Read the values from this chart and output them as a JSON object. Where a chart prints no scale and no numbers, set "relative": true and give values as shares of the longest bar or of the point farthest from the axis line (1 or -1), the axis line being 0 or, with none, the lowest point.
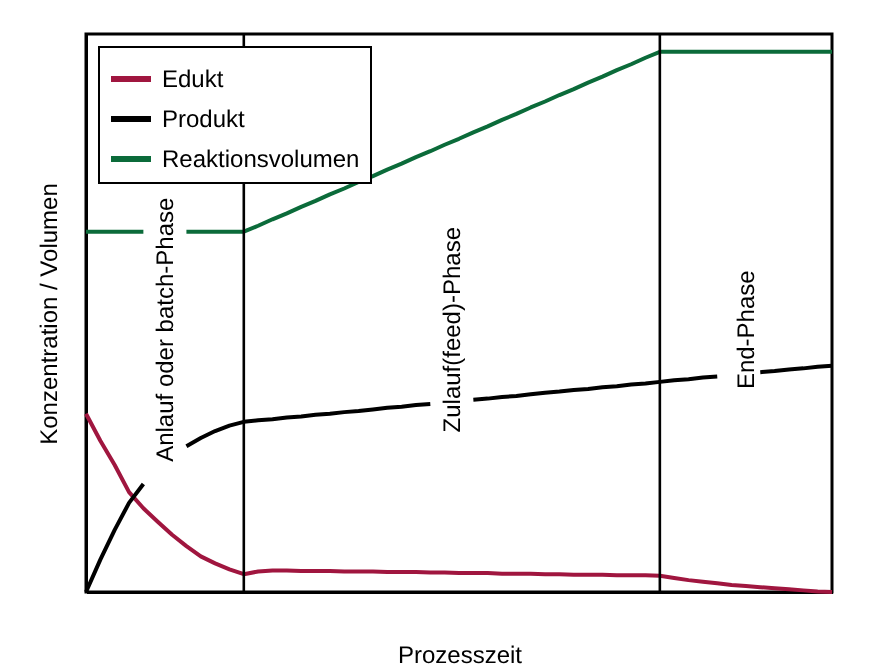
{
  "chart_data": {
    "type": "line",
    "relative": true,
    "xlabel": "Prozesszeit",
    "ylabel": "Konzentration / Volumen",
    "legend": "top left",
    "categories": [
      null,
      null,
      null,
      null,
      null,
      null,
      null,
      null,
      null,
      null,
      null,
      null,
      null,
      null,
      null,
      null,
      null,
      null,
      null,
      null,
      null,
      null,
      null,
      null,
      null,
      null,
      null,
      null,
      null,
      null,
      null,
      null,
      null,
      null,
      null,
      null,
      null,
      null,
      null,
      null,
      null,
      null,
      null,
      null,
      null,
      null,
      null,
      null,
      null,
      null,
      null,
      null,
      null
    ],
    "series": [
      {
        "name": "Edukt",
        "color": "#a0163f",
        "values": [
          0.33,
          0.28,
          0.235,
          0.185,
          0.155,
          0.13,
          0.106,
          0.085,
          0.066,
          0.053,
          0.042,
          0.033,
          0.038,
          0.04,
          0.04,
          0.039,
          0.039,
          0.039,
          0.038,
          0.038,
          0.038,
          0.037,
          0.037,
          0.037,
          0.036,
          0.036,
          0.035,
          0.035,
          0.035,
          0.034,
          0.034,
          0.034,
          0.033,
          0.033,
          0.032,
          0.032,
          0.032,
          0.031,
          0.031,
          0.031,
          0.03,
          0.026,
          0.022,
          0.019,
          0.016,
          0.013,
          0.011,
          0.009,
          0.007,
          0.005,
          0.003,
          0.001,
          0
        ]
      },
      {
        "name": "Produkt",
        "color": "#000000",
        "values": [
          0,
          0.06,
          0.115,
          0.165,
          0.2,
          null,
          null,
          0.27,
          0.285,
          0.298,
          0.308,
          0.315,
          0.318,
          0.32,
          0.323,
          0.325,
          0.328,
          0.33,
          0.333,
          0.335,
          0.338,
          0.341,
          0.343,
          0.346,
          0.348,
          null,
          null,
          0.356,
          0.358,
          0.361,
          0.363,
          0.366,
          0.369,
          0.371,
          0.374,
          0.376,
          0.379,
          0.381,
          0.384,
          0.386,
          0.389,
          0.392,
          0.394,
          0.397,
          0.399,
          null,
          null,
          0.407,
          0.409,
          0.412,
          0.414,
          0.417,
          0.419
        ]
      },
      {
        "name": "Reaktionsvolumen",
        "color": "#0b6b3a",
        "values": [
          0.667,
          0.667,
          0.667,
          0.667,
          0.667,
          null,
          null,
          0.667,
          0.667,
          0.667,
          0.667,
          0.667,
          0.678,
          0.69,
          0.701,
          0.713,
          0.724,
          0.736,
          0.747,
          0.759,
          0.77,
          0.782,
          0.793,
          0.805,
          0.816,
          0.828,
          0.839,
          0.851,
          0.862,
          0.874,
          0.885,
          0.897,
          0.908,
          0.92,
          0.931,
          0.943,
          0.954,
          0.966,
          0.977,
          0.989,
          1,
          1,
          1,
          1,
          1,
          1,
          1,
          1,
          1,
          1,
          1,
          1,
          1
        ]
      }
    ],
    "annotations": [
      "Anlauf oder batch-Phase",
      "Zulauf(feed)-Phase",
      "End-Phase"
    ]
  }
}
